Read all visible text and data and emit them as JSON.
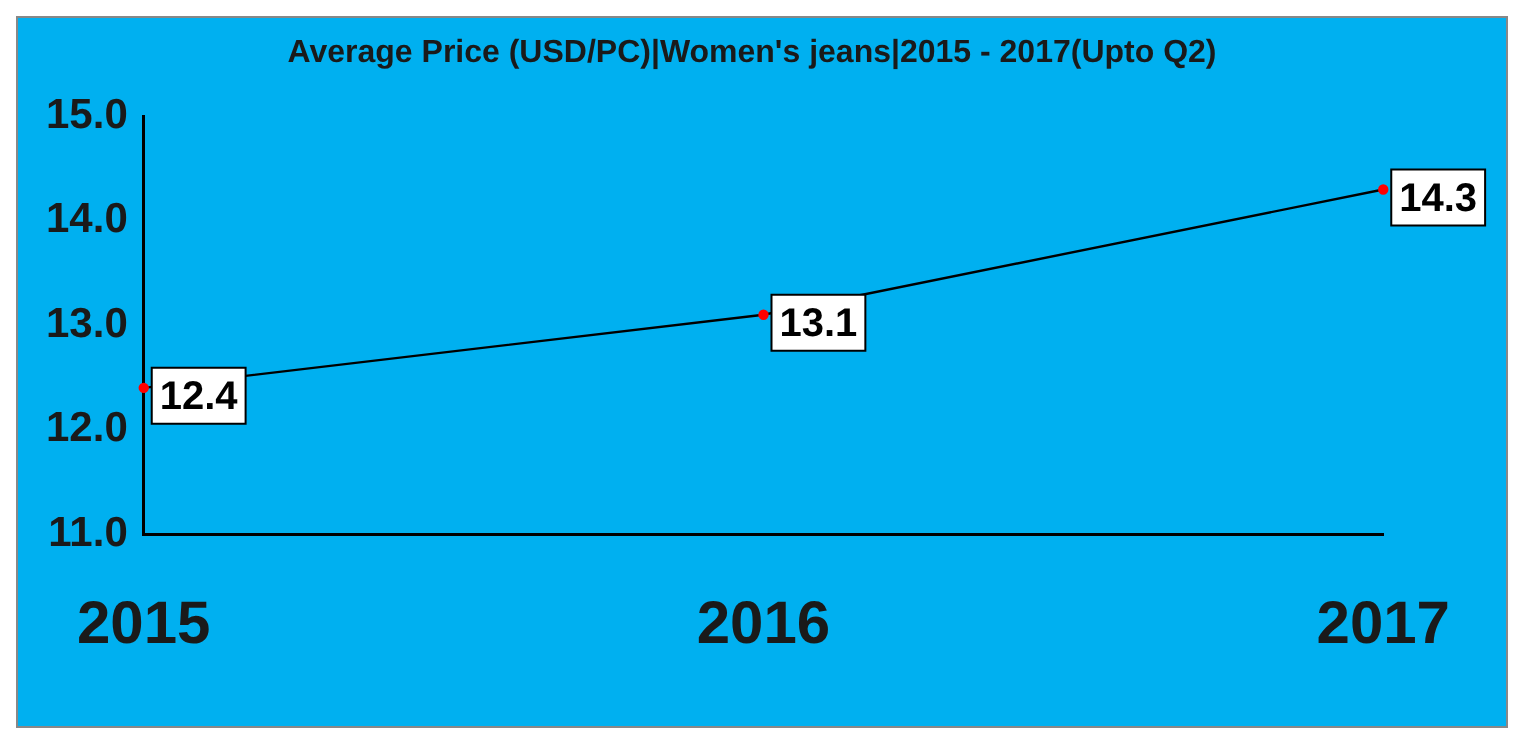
{
  "chart_data": {
    "type": "line",
    "title": "Average Price (USD/PC)|Women's jeans|2015 - 2017(Upto Q2)",
    "categories": [
      "2015",
      "2016",
      "2017"
    ],
    "series": [
      {
        "color": "#000000",
        "values": [
          12.4,
          13.1,
          14.3
        ]
      }
    ],
    "ylim": [
      11,
      15
    ],
    "yticks": [
      {
        "value": 11,
        "label": "11.0"
      },
      {
        "value": 12,
        "label": "12.0"
      },
      {
        "value": 13,
        "label": "13.0"
      },
      {
        "value": 14,
        "label": "14.0"
      },
      {
        "value": 15,
        "label": "15.0"
      }
    ],
    "grid": false,
    "legend": false,
    "marker": "circle",
    "line_style": "solid",
    "data_labels": true
  }
}
